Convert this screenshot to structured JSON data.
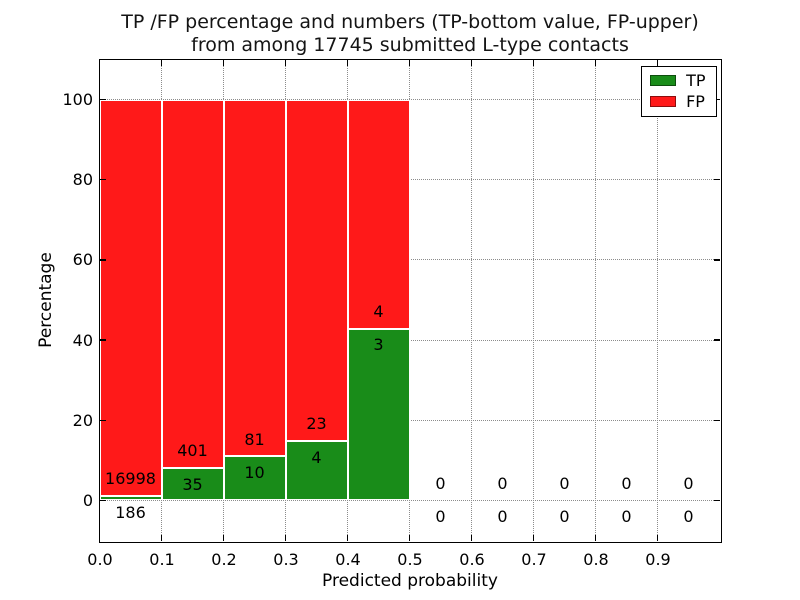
{
  "chart_data": {
    "type": "bar",
    "variant": "stacked-percentage-with-count-labels",
    "title_lines": [
      "TP /FP percentage and numbers (TP-bottom value, FP-upper)",
      "from among 17745 submitted L-type contacts"
    ],
    "total_submitted": 17745,
    "xlabel": "Predicted probability",
    "ylabel": "Percentage",
    "xlim": [
      0.0,
      1.0
    ],
    "ylim": [
      -10,
      110
    ],
    "bin_edges": [
      0.0,
      0.1,
      0.2,
      0.3,
      0.4,
      0.5,
      0.6,
      0.7,
      0.8,
      0.9,
      1.0
    ],
    "x_tick_labels": [
      "0.0",
      "0.1",
      "0.2",
      "0.3",
      "0.4",
      "0.5",
      "0.6",
      "0.7",
      "0.8",
      "0.9"
    ],
    "y_ticks": [
      0,
      20,
      40,
      60,
      80,
      100
    ],
    "grid": {
      "style": "dotted",
      "color": "#8c8c8c"
    },
    "legend_position": "upper-right",
    "bar_edge_color": "#ffffff",
    "series": [
      {
        "name": "TP",
        "color": "#198c19",
        "position": "bottom",
        "counts": [
          186,
          35,
          10,
          4,
          3,
          0,
          0,
          0,
          0,
          0
        ]
      },
      {
        "name": "FP",
        "color": "#ff1919",
        "position": "top",
        "counts": [
          16998,
          401,
          81,
          23,
          4,
          0,
          0,
          0,
          0,
          0
        ]
      }
    ],
    "tp_percent_by_bin": [
      1.08,
      8.03,
      10.99,
      14.81,
      42.86,
      0,
      0,
      0,
      0,
      0
    ]
  }
}
